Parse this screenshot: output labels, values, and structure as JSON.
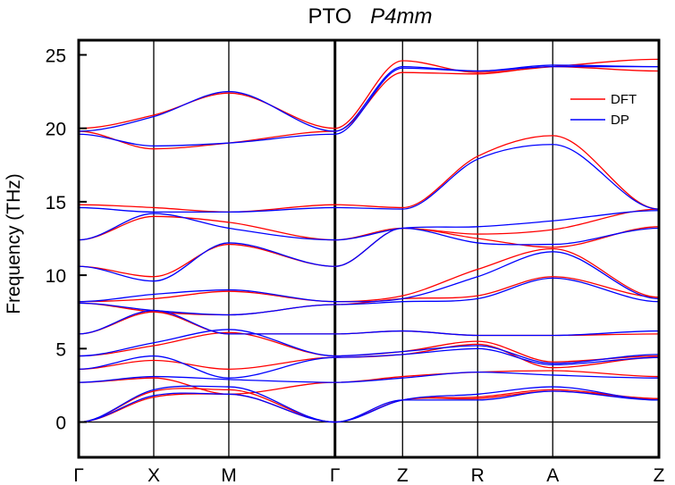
{
  "chart_data": {
    "type": "line",
    "title": "PTO",
    "subtitle": "P4mm",
    "xlabel": "",
    "ylabel": "Frequency (THz)",
    "ylim": [
      -2.4,
      26
    ],
    "yticks": [
      0,
      5,
      10,
      15,
      20,
      25
    ],
    "x_ticks": [
      "Γ",
      "X",
      "M",
      "Γ",
      "Z",
      "R",
      "A",
      "Z"
    ],
    "x_tick_positions": [
      0,
      1,
      2,
      3.4142,
      4.3142,
      5.3142,
      6.3142,
      7.7284
    ],
    "path_break_after": 3.4142,
    "legend": {
      "placement": "top-right",
      "entries": [
        "DFT",
        "DP"
      ]
    },
    "colors": {
      "DFT": "#ff0000",
      "DP": "#0000ff",
      "axes": "#000000"
    },
    "series": [
      {
        "name": "DFT",
        "color": "#ff0000",
        "bands": [
          [
            [
              0,
              0
            ],
            [
              1,
              1.7
            ],
            [
              2,
              1.9
            ],
            [
              3.4142,
              0
            ],
            [
              4.3142,
              1.5
            ],
            [
              5.3142,
              1.6
            ],
            [
              6.3142,
              2.1
            ],
            [
              7.7284,
              1.6
            ]
          ],
          [
            [
              0,
              0
            ],
            [
              1,
              2.1
            ],
            [
              2,
              2.2
            ],
            [
              3.4142,
              0
            ],
            [
              4.3142,
              1.5
            ],
            [
              5.3142,
              1.7
            ],
            [
              6.3142,
              2.2
            ],
            [
              7.7284,
              1.6
            ]
          ],
          [
            [
              0,
              2.7
            ],
            [
              1,
              3.0
            ],
            [
              2,
              1.9
            ],
            [
              3.4142,
              2.7
            ],
            [
              4.3142,
              3.1
            ],
            [
              5.3142,
              3.4
            ],
            [
              6.3142,
              3.5
            ],
            [
              7.7284,
              3.1
            ]
          ],
          [
            [
              0,
              3.6
            ],
            [
              1,
              4.2
            ],
            [
              2,
              3.6
            ],
            [
              3.4142,
              4.4
            ],
            [
              4.3142,
              4.6
            ],
            [
              5.3142,
              5.3
            ],
            [
              6.3142,
              3.7
            ],
            [
              7.7284,
              4.4
            ]
          ],
          [
            [
              0,
              4.5
            ],
            [
              1,
              5.2
            ],
            [
              2,
              6.1
            ],
            [
              3.4142,
              4.5
            ],
            [
              4.3142,
              4.8
            ],
            [
              5.3142,
              5.5
            ],
            [
              6.3142,
              4.1
            ],
            [
              7.7284,
              4.5
            ]
          ],
          [
            [
              0,
              6.0
            ],
            [
              1,
              7.5
            ],
            [
              2,
              6.0
            ],
            [
              3.4142,
              6.0
            ],
            [
              4.3142,
              6.2
            ],
            [
              5.3142,
              5.9
            ],
            [
              6.3142,
              5.9
            ],
            [
              7.7284,
              6.0
            ]
          ],
          [
            [
              0,
              8.1
            ],
            [
              1,
              7.5
            ],
            [
              2,
              7.3
            ],
            [
              3.4142,
              8.0
            ],
            [
              4.3142,
              8.4
            ],
            [
              5.3142,
              8.6
            ],
            [
              6.3142,
              9.9
            ],
            [
              7.7284,
              8.5
            ]
          ],
          [
            [
              0,
              8.2
            ],
            [
              1,
              8.4
            ],
            [
              2,
              8.9
            ],
            [
              3.4142,
              8.2
            ],
            [
              4.3142,
              8.6
            ],
            [
              5.3142,
              10.4
            ],
            [
              6.3142,
              11.8
            ],
            [
              7.7284,
              8.5
            ]
          ],
          [
            [
              0,
              10.6
            ],
            [
              1,
              9.9
            ],
            [
              2,
              12.1
            ],
            [
              3.4142,
              10.6
            ],
            [
              4.3142,
              13.2
            ],
            [
              5.3142,
              12.5
            ],
            [
              6.3142,
              11.9
            ],
            [
              7.7284,
              13.3
            ]
          ],
          [
            [
              0,
              12.4
            ],
            [
              1,
              14.0
            ],
            [
              2,
              13.6
            ],
            [
              3.4142,
              12.4
            ],
            [
              4.3142,
              13.2
            ],
            [
              5.3142,
              12.8
            ],
            [
              6.3142,
              13.1
            ],
            [
              7.7284,
              14.5
            ]
          ],
          [
            [
              0,
              14.8
            ],
            [
              1,
              14.6
            ],
            [
              2,
              14.3
            ],
            [
              3.4142,
              14.8
            ],
            [
              4.3142,
              14.6
            ],
            [
              5.3142,
              18.1
            ],
            [
              6.3142,
              19.5
            ],
            [
              7.7284,
              14.5
            ]
          ],
          [
            [
              0,
              19.8
            ],
            [
              1,
              18.6
            ],
            [
              2,
              19.0
            ],
            [
              3.4142,
              19.8
            ],
            [
              4.3142,
              23.8
            ],
            [
              5.3142,
              23.7
            ],
            [
              6.3142,
              24.2
            ],
            [
              7.7284,
              23.9
            ]
          ],
          [
            [
              0,
              20.0
            ],
            [
              1,
              20.9
            ],
            [
              2,
              22.4
            ],
            [
              3.4142,
              20.0
            ],
            [
              4.3142,
              24.6
            ],
            [
              5.3142,
              23.8
            ],
            [
              6.3142,
              24.2
            ],
            [
              7.7284,
              24.7
            ]
          ]
        ]
      },
      {
        "name": "DP",
        "color": "#0000ff",
        "bands": [
          [
            [
              0,
              0
            ],
            [
              1,
              1.8
            ],
            [
              2,
              1.9
            ],
            [
              3.4142,
              0
            ],
            [
              4.3142,
              1.5
            ],
            [
              5.3142,
              1.5
            ],
            [
              6.3142,
              2.1
            ],
            [
              7.7284,
              1.5
            ]
          ],
          [
            [
              0,
              0
            ],
            [
              1,
              2.2
            ],
            [
              2,
              2.4
            ],
            [
              3.4142,
              0
            ],
            [
              4.3142,
              1.5
            ],
            [
              5.3142,
              1.9
            ],
            [
              6.3142,
              2.4
            ],
            [
              7.7284,
              1.5
            ]
          ],
          [
            [
              0,
              2.7
            ],
            [
              1,
              3.1
            ],
            [
              2,
              2.9
            ],
            [
              3.4142,
              2.7
            ],
            [
              4.3142,
              3.0
            ],
            [
              5.3142,
              3.4
            ],
            [
              6.3142,
              3.2
            ],
            [
              7.7284,
              3.0
            ]
          ],
          [
            [
              0,
              3.6
            ],
            [
              1,
              4.5
            ],
            [
              2,
              3.0
            ],
            [
              3.4142,
              4.4
            ],
            [
              4.3142,
              4.6
            ],
            [
              5.3142,
              5.0
            ],
            [
              6.3142,
              3.9
            ],
            [
              7.7284,
              4.4
            ]
          ],
          [
            [
              0,
              4.5
            ],
            [
              1,
              5.4
            ],
            [
              2,
              6.3
            ],
            [
              3.4142,
              4.5
            ],
            [
              4.3142,
              4.8
            ],
            [
              5.3142,
              5.2
            ],
            [
              6.3142,
              4.0
            ],
            [
              7.7284,
              4.6
            ]
          ],
          [
            [
              0,
              6.0
            ],
            [
              1,
              7.6
            ],
            [
              2,
              6.0
            ],
            [
              3.4142,
              6.0
            ],
            [
              4.3142,
              6.2
            ],
            [
              5.3142,
              5.9
            ],
            [
              6.3142,
              5.9
            ],
            [
              7.7284,
              6.2
            ]
          ],
          [
            [
              0,
              8.1
            ],
            [
              1,
              7.6
            ],
            [
              2,
              7.3
            ],
            [
              3.4142,
              8.0
            ],
            [
              4.3142,
              8.2
            ],
            [
              5.3142,
              8.4
            ],
            [
              6.3142,
              9.8
            ],
            [
              7.7284,
              8.2
            ]
          ],
          [
            [
              0,
              8.2
            ],
            [
              1,
              8.7
            ],
            [
              2,
              9.0
            ],
            [
              3.4142,
              8.2
            ],
            [
              4.3142,
              8.4
            ],
            [
              5.3142,
              9.9
            ],
            [
              6.3142,
              11.6
            ],
            [
              7.7284,
              8.4
            ]
          ],
          [
            [
              0,
              10.6
            ],
            [
              1,
              9.6
            ],
            [
              2,
              12.2
            ],
            [
              3.4142,
              10.6
            ],
            [
              4.3142,
              13.2
            ],
            [
              5.3142,
              12.2
            ],
            [
              6.3142,
              12.1
            ],
            [
              7.7284,
              13.2
            ]
          ],
          [
            [
              0,
              12.4
            ],
            [
              1,
              14.2
            ],
            [
              2,
              13.2
            ],
            [
              3.4142,
              12.4
            ],
            [
              4.3142,
              13.2
            ],
            [
              5.3142,
              13.3
            ],
            [
              6.3142,
              13.7
            ],
            [
              7.7284,
              14.4
            ]
          ],
          [
            [
              0,
              14.6
            ],
            [
              1,
              14.3
            ],
            [
              2,
              14.3
            ],
            [
              3.4142,
              14.6
            ],
            [
              4.3142,
              14.5
            ],
            [
              5.3142,
              17.9
            ],
            [
              6.3142,
              18.9
            ],
            [
              7.7284,
              14.5
            ]
          ],
          [
            [
              0,
              19.6
            ],
            [
              1,
              18.8
            ],
            [
              2,
              19.0
            ],
            [
              3.4142,
              19.6
            ],
            [
              4.3142,
              24.1
            ],
            [
              5.3142,
              23.9
            ],
            [
              6.3142,
              24.2
            ],
            [
              7.7284,
              24.2
            ]
          ],
          [
            [
              0,
              19.8
            ],
            [
              1,
              20.8
            ],
            [
              2,
              22.5
            ],
            [
              3.4142,
              19.8
            ],
            [
              4.3142,
              24.2
            ],
            [
              5.3142,
              23.9
            ],
            [
              6.3142,
              24.3
            ],
            [
              7.7284,
              24.2
            ]
          ]
        ]
      }
    ]
  }
}
